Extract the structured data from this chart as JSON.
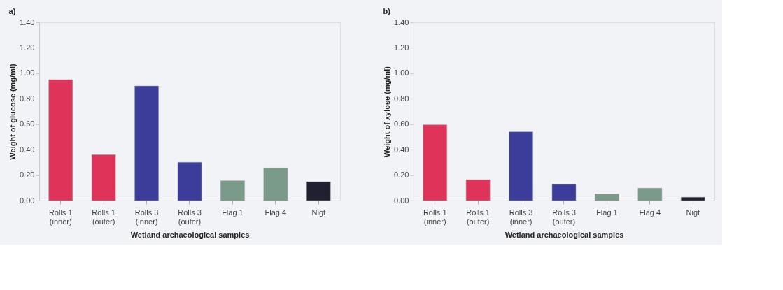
{
  "chart_data": [
    {
      "type": "bar",
      "title": "a)",
      "xlabel": "Wetland archaeological samples",
      "ylabel": "Weight of glucose (mg/ml)",
      "categories": [
        "Rolls 1 (inner)",
        "Rolls 1 (outer)",
        "Rolls 3 (inner)",
        "Rolls 3 (outer)",
        "Flag 1",
        "Flag 4",
        "Nigt"
      ],
      "values": [
        0.95,
        0.36,
        0.9,
        0.3,
        0.155,
        0.256,
        0.148
      ],
      "colors": [
        "#e0335a",
        "#e0335a",
        "#3c3c9a",
        "#3c3c9a",
        "#7a9a8a",
        "#7a9a8a",
        "#202030"
      ],
      "ylim": [
        0,
        1.4
      ],
      "yticks": [
        {
          "value": 0,
          "label": "0.00"
        },
        {
          "value": 0.2,
          "label": "0.20"
        },
        {
          "value": 0.4,
          "label": "0.40"
        },
        {
          "value": 0.6,
          "label": "0.60"
        },
        {
          "value": 0.8,
          "label": "0.80"
        },
        {
          "value": 1.0,
          "label": "1.00"
        },
        {
          "value": 1.2,
          "label": "1.20"
        },
        {
          "value": 1.4,
          "label": "1.40"
        }
      ],
      "grid": false,
      "legend": false
    },
    {
      "type": "bar",
      "title": "b)",
      "xlabel": "Wetland archaeological samples",
      "ylabel": "Weight of xylose (mg/ml)",
      "categories": [
        "Rolls 1 (inner)",
        "Rolls 1 (outer)",
        "Rolls 3 (inner)",
        "Rolls 3 (outer)",
        "Flag 1",
        "Flag 4",
        "Nigt"
      ],
      "values": [
        0.595,
        0.164,
        0.54,
        0.127,
        0.051,
        0.097,
        0.026
      ],
      "colors": [
        "#e0335a",
        "#e0335a",
        "#3c3c9a",
        "#3c3c9a",
        "#7a9a8a",
        "#7a9a8a",
        "#202030"
      ],
      "ylim": [
        0,
        1.4
      ],
      "yticks": [
        {
          "value": 0,
          "label": "0.00"
        },
        {
          "value": 0.2,
          "label": "0.20"
        },
        {
          "value": 0.4,
          "label": "0.40"
        },
        {
          "value": 0.6,
          "label": "0.60"
        },
        {
          "value": 0.8,
          "label": "0.80"
        },
        {
          "value": 1.0,
          "label": "1.00"
        },
        {
          "value": 1.2,
          "label": "1.20"
        },
        {
          "value": 1.4,
          "label": "1.40"
        }
      ],
      "grid": false,
      "legend": false
    }
  ]
}
